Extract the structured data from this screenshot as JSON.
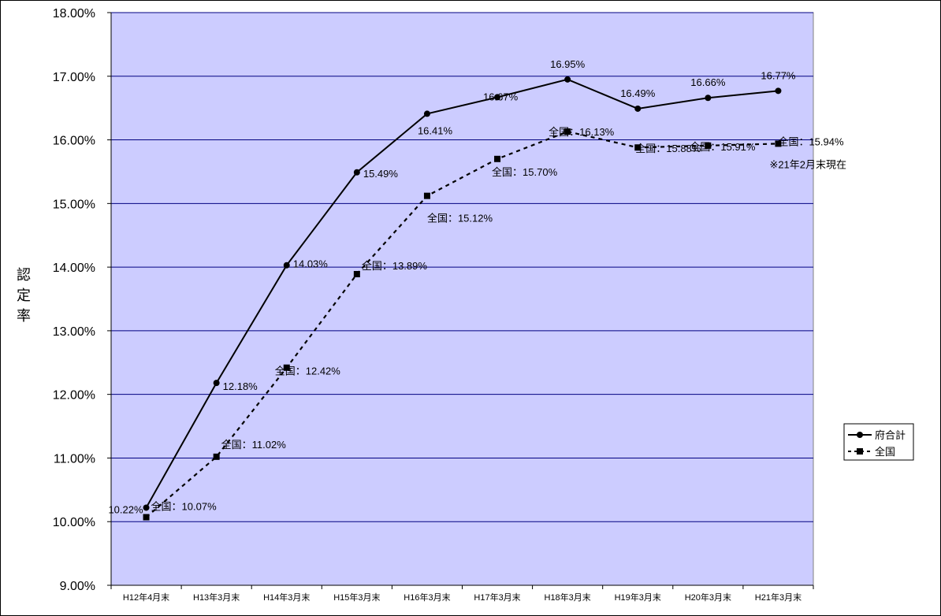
{
  "chart_data": {
    "type": "line",
    "title": "",
    "xlabel": "",
    "ylabel": "認定率",
    "ylim": [
      9.0,
      18.0
    ],
    "ytick_step": 1.0,
    "yticks": [
      "9.00%",
      "10.00%",
      "11.00%",
      "12.00%",
      "13.00%",
      "14.00%",
      "15.00%",
      "16.00%",
      "17.00%",
      "18.00%"
    ],
    "categories": [
      "H12年4月末",
      "H13年3月末",
      "H14年3月末",
      "H15年3月末",
      "H16年3月末",
      "H17年3月末",
      "H18年3月末",
      "H19年3月末",
      "H20年3月末",
      "H21年3月末"
    ],
    "grid": true,
    "legend_position": "right",
    "series": [
      {
        "name": "府合計",
        "style": "solid",
        "marker": "circle",
        "values": [
          10.22,
          12.18,
          14.03,
          15.49,
          16.41,
          16.67,
          16.95,
          16.49,
          16.66,
          16.77
        ],
        "labels": [
          "10.22%",
          "12.18%",
          "14.03%",
          "15.49%",
          "16.41%",
          "16.67%",
          "16.95%",
          "16.49%",
          "16.66%",
          "16.77%"
        ]
      },
      {
        "name": "全国",
        "style": "dashed",
        "marker": "square",
        "values": [
          10.07,
          11.02,
          12.42,
          13.89,
          15.12,
          15.7,
          16.13,
          15.88,
          15.91,
          15.94
        ],
        "labels": [
          "全国：10.07%",
          "全国：11.02%",
          "全国：12.42%",
          "全国：13.89%",
          "全国：15.12%",
          "全国：15.70%",
          "全国：16.13%",
          "全国：15.88%",
          "全国：15.91%",
          "全国：15.94%"
        ]
      }
    ],
    "annotations": [
      "※21年2月末現在"
    ],
    "colors": {
      "plot_background": "#ccccff",
      "gridline": "#000080",
      "line": "#000000"
    }
  }
}
